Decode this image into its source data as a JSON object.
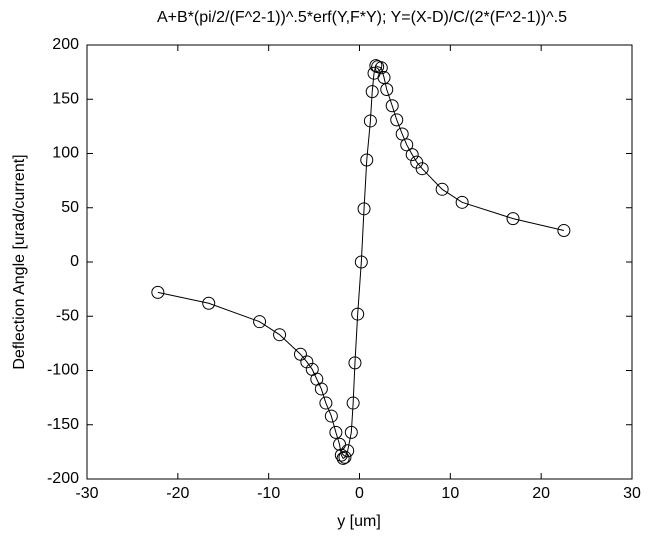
{
  "chart_data": {
    "type": "scatter",
    "title": "A+B*(pi/2/(F^2-1))^.5*erf(Y,F*Y); Y=(X-D)/C/(2*(F^2-1))^.5",
    "x_label": "y [um]",
    "y_label": "Deflection Angle [urad/current]",
    "xlim": [
      -30,
      30
    ],
    "xticks": [
      -30,
      -20,
      -10,
      0,
      10,
      20,
      30
    ],
    "ylim": [
      -200,
      200
    ],
    "yticks": [
      -200,
      -150,
      -100,
      -50,
      0,
      50,
      100,
      150,
      200
    ],
    "grid": false,
    "marker": "circle",
    "line": true,
    "series": [
      {
        "color": "#000000",
        "x": [
          -22.2,
          -16.6,
          -11,
          -8.8,
          -6.5,
          -5.8,
          -5.2,
          -4.7,
          -4.2,
          -3.7,
          -3.1,
          -2.6,
          -2.2,
          -2.0,
          -1.8,
          -1.6,
          -1.3,
          -0.9,
          -0.7,
          -0.5,
          -0.2,
          0.2,
          0.5,
          0.8,
          1.2,
          1.4,
          1.6,
          1.8,
          2.0,
          2.4,
          2.7,
          3.0,
          3.6,
          4.1,
          4.7,
          5.2,
          5.8,
          6.3,
          6.9,
          9.1,
          11.3,
          16.9,
          22.5
        ],
        "values": [
          -28,
          -38,
          -55,
          -67,
          -85,
          -92,
          -99,
          -108,
          -117,
          -130,
          -142,
          -157,
          -168,
          -178,
          -181,
          -180,
          -174,
          -157,
          -130,
          -93,
          -48,
          0,
          49,
          94,
          130,
          157,
          174,
          181,
          180,
          179,
          170,
          159,
          144,
          131,
          118,
          108,
          99,
          92,
          86,
          67,
          55,
          40,
          29
        ]
      }
    ]
  }
}
